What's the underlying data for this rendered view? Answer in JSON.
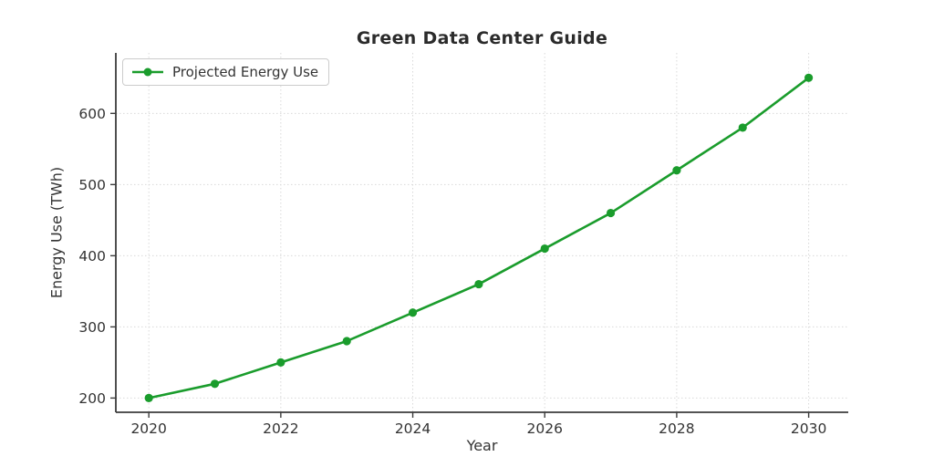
{
  "title": "Green Data Center Guide",
  "legend": {
    "label": "Projected Energy Use"
  },
  "colors": {
    "series_green": "#1a9c2c",
    "axis": "#3b3b3b",
    "grid": "#d9d9d9",
    "text": "#333333",
    "background": "#ffffff"
  },
  "chart_data": {
    "type": "line",
    "title": "Green Data Center Guide",
    "xlabel": "Year",
    "ylabel": "Energy Use (TWh)",
    "legend_entries": [
      "Projected Energy Use"
    ],
    "legend_position": "upper left",
    "grid": true,
    "grid_style": "dotted",
    "x": [
      2020,
      2021,
      2022,
      2023,
      2024,
      2025,
      2026,
      2027,
      2028,
      2029,
      2030
    ],
    "series": [
      {
        "name": "Projected Energy Use",
        "color": "#1a9c2c",
        "marker": "circle",
        "values": [
          200,
          220,
          250,
          280,
          320,
          360,
          410,
          460,
          520,
          580,
          650
        ]
      }
    ],
    "x_ticks": [
      2020,
      2022,
      2024,
      2026,
      2028,
      2030
    ],
    "y_ticks": [
      200,
      300,
      400,
      500,
      600
    ],
    "xlim": [
      2019.5,
      2030.6
    ],
    "ylim": [
      180,
      685
    ]
  }
}
